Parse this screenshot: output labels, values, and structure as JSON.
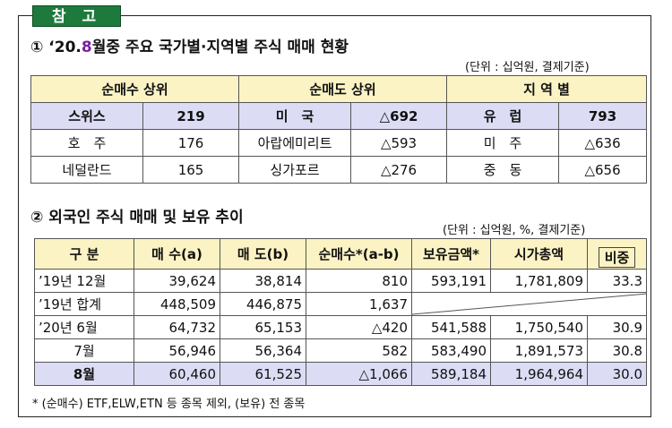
{
  "tag": "참 고",
  "section1": {
    "title_prefix": "① ‘20.",
    "title_highlight": "8",
    "title_suffix": "월중 주요 국가별·지역별 주식 매매 현황",
    "unit": "(단위 : 십억원, 결제기준)",
    "headers": [
      "순매수 상위",
      "순매도 상위",
      "지 역 별"
    ],
    "rows": [
      [
        "스위스",
        "219",
        "미　국",
        "△692",
        "유　럽",
        "793"
      ],
      [
        "호　주",
        "176",
        "아랍에미리트",
        "△593",
        "미　주",
        "△636"
      ],
      [
        "네덜란드",
        "165",
        "싱가포르",
        "△276",
        "중　동",
        "△656"
      ]
    ]
  },
  "section2": {
    "title": "② 외국인 주식 매매 및 보유 추이",
    "unit": "(단위 : 십억원, %, 결제기준)",
    "headers": [
      "구 분",
      "매 수(a)",
      "매 도(b)",
      "순매수*(a-b)",
      "보유금액*",
      "시가총액",
      "비중"
    ],
    "rows": [
      [
        "’19년 12월",
        "39,624",
        "38,814",
        "810",
        "593,191",
        "1,781,809",
        "33.3"
      ],
      [
        "’19년 합계",
        "448,509",
        "446,875",
        "1,637",
        "",
        "",
        ""
      ],
      [
        "’20년 6월",
        "64,732",
        "65,153",
        "△420",
        "541,588",
        "1,750,540",
        "30.9"
      ],
      [
        "7월",
        "56,946",
        "56,364",
        "582",
        "583,490",
        "1,891,573",
        "30.8"
      ],
      [
        "8월",
        "60,460",
        "61,525",
        "△1,066",
        "589,184",
        "1,964,964",
        "30.0"
      ]
    ]
  },
  "footnote": "* (순매수) ETF,ELW,ETN 등 종목 제외, (보유) 전 종목",
  "colors": {
    "tag_bg": "#1e7a3c",
    "header_bg": "#fbf3c4",
    "highlight_row_bg": "#dcdcf5",
    "title_digit": "#7a1fa2"
  }
}
